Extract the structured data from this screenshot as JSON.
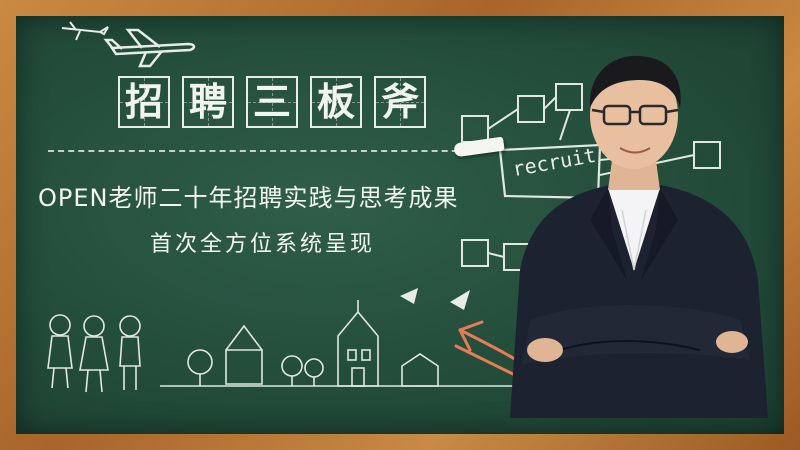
{
  "title": {
    "chars": [
      "招",
      "聘",
      "三",
      "板",
      "斧"
    ]
  },
  "subtitle": {
    "line1": "OPEN老师二十年招聘实践与思考成果",
    "line2": "首次全方位系统呈现"
  },
  "recruit_label": "recruit",
  "colors": {
    "board": "#25503d",
    "frame": "#b8742e",
    "chalk": "#f2f4ee",
    "arrow": "#e97b58"
  }
}
